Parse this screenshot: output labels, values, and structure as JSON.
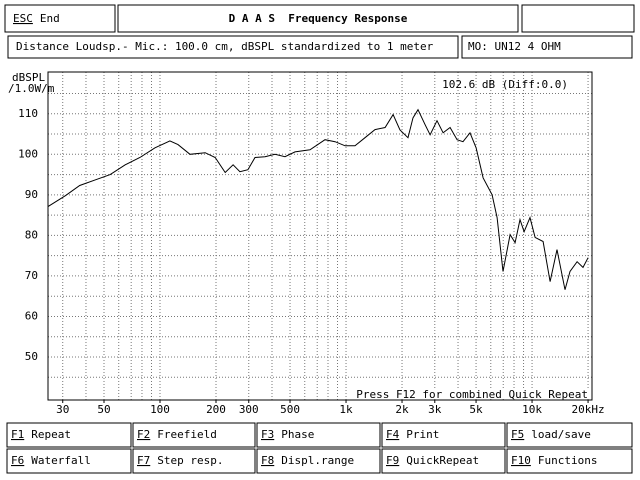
{
  "header": {
    "esc_key": "ESC",
    "esc_label": "End",
    "title": "D A A S  Frequency Response"
  },
  "info": {
    "measurement": "Distance Loudsp.- Mic.: 100.0 cm, dBSPL standardized to 1 meter",
    "model": "MO: UN12 4 OHM"
  },
  "chart_data": {
    "type": "line",
    "ylabel_lines": [
      "dBSPL",
      "/1.0W/m"
    ],
    "annotation_top": "102.6 dB (Diff:0.0)",
    "annotation_bottom": "Press F12 for combined Quick Repeat",
    "log_x": true,
    "grid": true,
    "xlim": [
      25,
      21000
    ],
    "ylim": [
      39.4,
      120.3
    ],
    "xticks": [
      30,
      50,
      100,
      200,
      300,
      500,
      {
        "value": 1000,
        "label": "1k"
      },
      {
        "value": 2000,
        "label": "2k"
      },
      {
        "value": 3000,
        "label": "3k"
      },
      {
        "value": 5000,
        "label": "5k"
      },
      {
        "value": 10000,
        "label": "10k"
      },
      {
        "value": 20000,
        "label": "20kHz"
      }
    ],
    "yticks": [
      50,
      60,
      70,
      80,
      90,
      100,
      110
    ],
    "xgrid": [
      30,
      40,
      50,
      60,
      70,
      80,
      90,
      100,
      200,
      300,
      400,
      500,
      600,
      700,
      800,
      900,
      1000,
      2000,
      3000,
      4000,
      5000,
      6000,
      7000,
      8000,
      9000,
      10000,
      20000
    ],
    "ygrid": [
      45,
      55,
      65,
      75,
      85,
      95,
      105,
      115
    ],
    "x": [
      25,
      31,
      37,
      45,
      54,
      65,
      78,
      94,
      113,
      125,
      145,
      175,
      198,
      224,
      247,
      269,
      297,
      324,
      367,
      415,
      470,
      532,
      640,
      771,
      873,
      988,
      1117,
      1265,
      1432,
      1622,
      1790,
      1950,
      2153,
      2291,
      2438,
      2660,
      2830,
      3085,
      3325,
      3624,
      3953,
      4256,
      4641,
      5000,
      5455,
      6097,
      6486,
      6982,
      7617,
      8106,
      8616,
      9057,
      9754,
      10380,
      11460,
      12500,
      13620,
      15040,
      16000,
      17460,
      18790,
      20000
    ],
    "series": [
      {
        "color": "#000000",
        "values": [
          87.1,
          89.8,
          92.3,
          93.7,
          95.0,
          97.4,
          99.2,
          101.6,
          103.3,
          102.4,
          100.0,
          100.4,
          99.2,
          95.5,
          97.4,
          95.7,
          96.2,
          99.2,
          99.4,
          100.0,
          99.4,
          100.6,
          101.1,
          103.6,
          103.1,
          102.1,
          102.1,
          104.1,
          106.1,
          106.6,
          109.8,
          106.0,
          104.1,
          109.0,
          111.0,
          107.3,
          104.8,
          108.3,
          105.3,
          106.6,
          103.6,
          103.1,
          105.3,
          101.6,
          94.2,
          90.0,
          84.4,
          71.1,
          80.2,
          78.2,
          83.9,
          80.9,
          84.4,
          79.5,
          78.5,
          68.6,
          76.5,
          66.6,
          71.1,
          73.5,
          72.1,
          74.5
        ]
      }
    ]
  },
  "function_keys": [
    {
      "key": "F1",
      "label": "Repeat"
    },
    {
      "key": "F2",
      "label": "Freefield"
    },
    {
      "key": "F3",
      "label": "Phase"
    },
    {
      "key": "F4",
      "label": "Print"
    },
    {
      "key": "F5",
      "label": "load/save"
    },
    {
      "key": "F6",
      "label": "Waterfall"
    },
    {
      "key": "F7",
      "label": "Step resp."
    },
    {
      "key": "F8",
      "label": "Displ.range"
    },
    {
      "key": "F9",
      "label": "QuickRepeat"
    },
    {
      "key": "F10",
      "label": "Functions"
    }
  ]
}
